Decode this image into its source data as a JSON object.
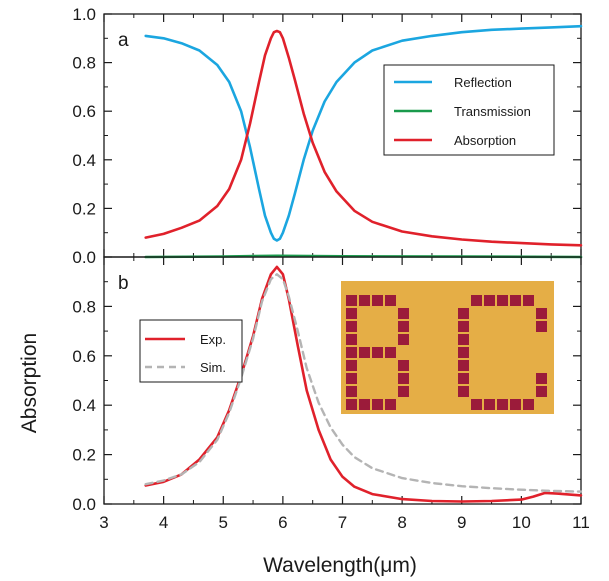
{
  "chart_data": [
    {
      "type": "line",
      "panel_label": "a",
      "xlim": [
        3,
        11
      ],
      "ylim": [
        0,
        1
      ],
      "y_ticks": [
        "0.0",
        "0.2",
        "0.4",
        "0.6",
        "0.8",
        "1.0"
      ],
      "grid": false,
      "legend_position": "top-right",
      "series": [
        {
          "name": "Reflection",
          "color": "#1ba6e0",
          "x": [
            3.7,
            4.0,
            4.3,
            4.6,
            4.9,
            5.1,
            5.3,
            5.45,
            5.6,
            5.7,
            5.8,
            5.85,
            5.9,
            5.95,
            6.0,
            6.1,
            6.2,
            6.35,
            6.5,
            6.7,
            6.9,
            7.2,
            7.5,
            8.0,
            8.5,
            9.0,
            9.5,
            10.0,
            10.5,
            11.0
          ],
          "y": [
            0.91,
            0.9,
            0.88,
            0.85,
            0.79,
            0.72,
            0.6,
            0.45,
            0.28,
            0.17,
            0.1,
            0.075,
            0.068,
            0.075,
            0.1,
            0.17,
            0.26,
            0.4,
            0.52,
            0.64,
            0.72,
            0.8,
            0.85,
            0.89,
            0.91,
            0.925,
            0.935,
            0.94,
            0.945,
            0.95
          ]
        },
        {
          "name": "Transmission",
          "color": "#1a9a4c",
          "x": [
            3.7,
            5.0,
            5.9,
            7.0,
            9.0,
            11.0
          ],
          "y": [
            0.0,
            0.002,
            0.005,
            0.003,
            0.002,
            0.0
          ]
        },
        {
          "name": "Absorption",
          "color": "#e0212b",
          "x": [
            3.7,
            4.0,
            4.3,
            4.6,
            4.9,
            5.1,
            5.3,
            5.45,
            5.6,
            5.7,
            5.8,
            5.85,
            5.9,
            5.95,
            6.0,
            6.1,
            6.2,
            6.35,
            6.5,
            6.7,
            6.9,
            7.2,
            7.5,
            8.0,
            8.5,
            9.0,
            9.5,
            10.0,
            10.5,
            11.0
          ],
          "y": [
            0.08,
            0.095,
            0.12,
            0.15,
            0.21,
            0.28,
            0.4,
            0.55,
            0.72,
            0.83,
            0.9,
            0.925,
            0.93,
            0.925,
            0.9,
            0.82,
            0.73,
            0.59,
            0.47,
            0.35,
            0.27,
            0.19,
            0.145,
            0.105,
            0.085,
            0.072,
            0.063,
            0.057,
            0.052,
            0.048
          ]
        }
      ]
    },
    {
      "type": "line",
      "panel_label": "b",
      "xlim": [
        3,
        11
      ],
      "ylim": [
        0,
        1
      ],
      "y_ticks": [
        "0.0",
        "0.2",
        "0.4",
        "0.6",
        "0.8"
      ],
      "x_ticks": [
        "3",
        "4",
        "5",
        "6",
        "7",
        "8",
        "9",
        "10",
        "11"
      ],
      "xlabel": "Wavelength(μm)",
      "ylabel": "Absorption",
      "grid": false,
      "legend_position": "middle-left",
      "series": [
        {
          "name": "Exp.",
          "color": "#e0212b",
          "style": "solid",
          "x": [
            3.7,
            4.0,
            4.3,
            4.6,
            4.9,
            5.1,
            5.3,
            5.5,
            5.65,
            5.8,
            5.9,
            6.0,
            6.1,
            6.25,
            6.4,
            6.6,
            6.8,
            7.0,
            7.2,
            7.5,
            8.0,
            8.5,
            9.0,
            9.5,
            10.0,
            10.2,
            10.4,
            10.6,
            11.0
          ],
          "y": [
            0.075,
            0.09,
            0.12,
            0.18,
            0.27,
            0.38,
            0.52,
            0.68,
            0.83,
            0.93,
            0.96,
            0.93,
            0.83,
            0.64,
            0.46,
            0.3,
            0.18,
            0.11,
            0.07,
            0.04,
            0.02,
            0.012,
            0.01,
            0.012,
            0.018,
            0.03,
            0.045,
            0.042,
            0.035
          ]
        },
        {
          "name": "Sim.",
          "color": "#b4b4b4",
          "style": "dashed",
          "x": [
            3.7,
            4.0,
            4.3,
            4.6,
            4.9,
            5.1,
            5.3,
            5.5,
            5.65,
            5.8,
            5.9,
            6.0,
            6.1,
            6.25,
            6.4,
            6.6,
            6.8,
            7.0,
            7.2,
            7.5,
            8.0,
            8.5,
            9.0,
            9.5,
            10.0,
            10.5,
            11.0
          ],
          "y": [
            0.08,
            0.095,
            0.12,
            0.17,
            0.26,
            0.37,
            0.51,
            0.67,
            0.82,
            0.91,
            0.93,
            0.91,
            0.84,
            0.7,
            0.55,
            0.41,
            0.31,
            0.24,
            0.19,
            0.145,
            0.105,
            0.085,
            0.072,
            0.064,
            0.058,
            0.053,
            0.05
          ]
        }
      ]
    }
  ],
  "inset": {
    "background_color": "#e0a63a",
    "square_color": "#9b1b3a"
  }
}
